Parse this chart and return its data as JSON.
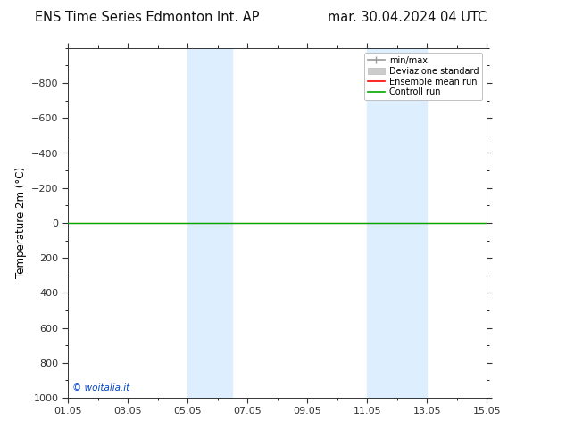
{
  "title_left": "ENS Time Series Edmonton Int. AP",
  "title_right": "mar. 30.04.2024 04 UTC",
  "ylabel": "Temperature 2m (°C)",
  "ylim": [
    -1000,
    1000
  ],
  "yticks": [
    -800,
    -600,
    -400,
    -200,
    0,
    200,
    400,
    600,
    800,
    1000
  ],
  "xtick_labels": [
    "01.05",
    "03.05",
    "05.05",
    "07.05",
    "09.05",
    "11.05",
    "13.05",
    "15.05"
  ],
  "xtick_positions": [
    0,
    2,
    4,
    6,
    8,
    10,
    12,
    14
  ],
  "shaded_regions": [
    {
      "start": 4,
      "end": 5.5
    },
    {
      "start": 10,
      "end": 12
    }
  ],
  "green_line_y": 0,
  "red_line_y": 0,
  "watermark": "© woitalia.it",
  "watermark_color": "#0044cc",
  "legend_labels": [
    "min/max",
    "Deviazione standard",
    "Ensemble mean run",
    "Controll run"
  ],
  "background_color": "#ffffff",
  "plot_bg_color": "#ffffff",
  "shade_color": "#ddeeff",
  "title_fontsize": 10.5,
  "axis_fontsize": 8.5,
  "tick_fontsize": 8
}
